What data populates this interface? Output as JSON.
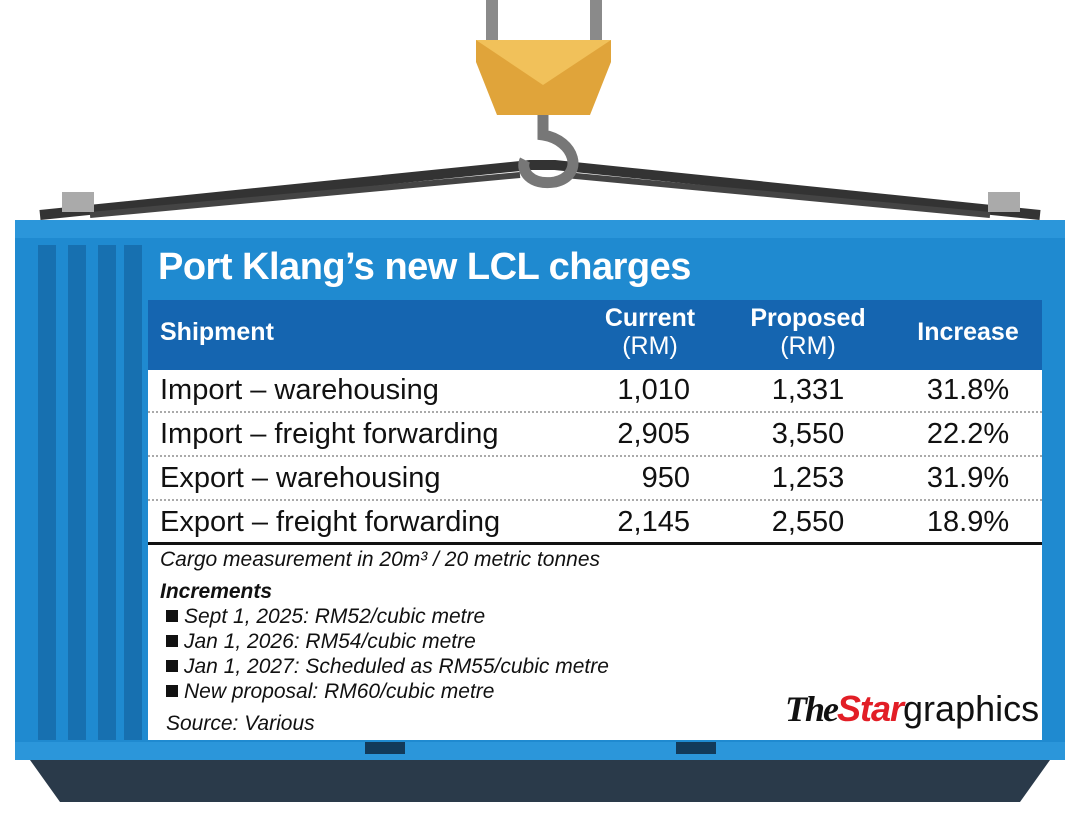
{
  "title": "Port Klang’s new LCL charges",
  "table": {
    "header": [
      [
        "Shipment"
      ],
      [
        "Current",
        "(RM)"
      ],
      [
        "Proposed",
        "(RM)"
      ],
      [
        "Increase"
      ]
    ],
    "rows": [
      [
        "Import – warehousing",
        "1,010",
        "1,331",
        "31.8%"
      ],
      [
        "Import – freight forwarding",
        "2,905",
        "3,550",
        "22.2%"
      ],
      [
        "Export – warehousing",
        "950",
        "1,253",
        "31.9%"
      ],
      [
        "Export – freight forwarding",
        "2,145",
        "2,550",
        "18.9%"
      ]
    ]
  },
  "note": "Cargo measurement in 20m³ / 20 metric tonnes",
  "increments": {
    "title": "Increments",
    "items": [
      "Sept 1, 2025: RM52/cubic metre",
      "Jan 1, 2026: RM54/cubic metre",
      "Jan 1, 2027: Scheduled as RM55/cubic metre",
      "New proposal: RM60/cubic metre"
    ]
  },
  "source": "Source: Various",
  "logo": {
    "the": "The",
    "star": "Star",
    "graphics": "graphics"
  }
}
